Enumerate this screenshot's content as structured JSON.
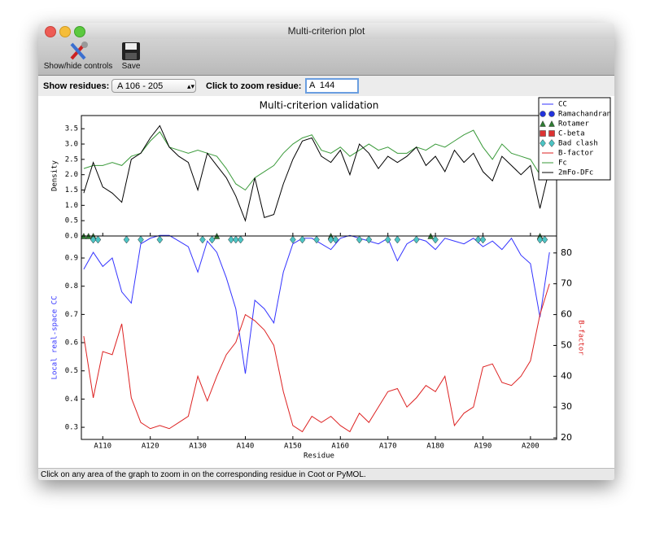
{
  "window": {
    "title": "Multi-criterion plot"
  },
  "toolbar": {
    "buttons": [
      "Show/hide controls",
      "Save"
    ]
  },
  "controls": {
    "residues_label": "Show residues:",
    "residues_value": "A  106 - 205",
    "zoom_label": "Click to zoom residue:",
    "zoom_value": "A  144"
  },
  "status_bar": "Click on any area of the graph to zoom in on the corresponding residue in Coot or PyMOL.",
  "chart_data": {
    "type": "line",
    "title": "Multi-criterion validation",
    "xlabel": "Residue",
    "x": [
      106,
      108,
      110,
      112,
      114,
      116,
      118,
      120,
      122,
      124,
      126,
      128,
      130,
      132,
      134,
      136,
      138,
      140,
      142,
      144,
      146,
      148,
      150,
      152,
      154,
      156,
      158,
      160,
      162,
      164,
      166,
      168,
      170,
      172,
      174,
      176,
      178,
      180,
      182,
      184,
      186,
      188,
      190,
      192,
      194,
      196,
      198,
      200,
      202,
      204
    ],
    "xlim": [
      105.5,
      205.5
    ],
    "xticks": [
      {
        "value": 110,
        "label": "A110"
      },
      {
        "value": 120,
        "label": "A120"
      },
      {
        "value": 130,
        "label": "A130"
      },
      {
        "value": 140,
        "label": "A140"
      },
      {
        "value": 150,
        "label": "A150"
      },
      {
        "value": 160,
        "label": "A160"
      },
      {
        "value": 170,
        "label": "A170"
      },
      {
        "value": 180,
        "label": "A180"
      },
      {
        "value": 190,
        "label": "A190"
      },
      {
        "value": 200,
        "label": "A200"
      }
    ],
    "legend": "upper right",
    "panels": [
      {
        "ylabel": "Density",
        "ylabel_color": "#000000",
        "ylim": [
          0,
          3.93
        ],
        "yticks": [
          {
            "value": 0,
            "label": "0.0"
          },
          0.5,
          {
            "value": 1,
            "label": "1.0"
          },
          1.5,
          {
            "value": 2,
            "label": "2.0"
          },
          2.5,
          {
            "value": 3,
            "label": "3.0"
          },
          3.5
        ]
      },
      {
        "ylabel": "Local real-space CC",
        "ylabel_color": "#3333ff",
        "ylim": [
          0.257,
          0.978
        ],
        "yticks": [
          0.3,
          0.4,
          0.5,
          0.6,
          0.7,
          0.8,
          0.9
        ],
        "y2label": "B-factor",
        "y2label_color": "#dd2222",
        "y2lim": [
          19.5,
          85.5
        ],
        "y2ticks": [
          20,
          30,
          40,
          50,
          60,
          70,
          80
        ]
      }
    ],
    "series": [
      {
        "name": "CC",
        "kind": "line",
        "panel": 1,
        "color": "#3333ff",
        "values": [
          0.86,
          0.92,
          0.87,
          0.9,
          0.78,
          0.74,
          0.95,
          0.97,
          0.98,
          0.98,
          0.96,
          0.94,
          0.85,
          0.96,
          0.92,
          0.83,
          0.72,
          0.49,
          0.75,
          0.72,
          0.67,
          0.85,
          0.95,
          0.97,
          0.97,
          0.95,
          0.93,
          0.97,
          0.98,
          0.97,
          0.96,
          0.95,
          0.97,
          0.89,
          0.95,
          0.97,
          0.96,
          0.93,
          0.97,
          0.96,
          0.95,
          0.97,
          0.94,
          0.96,
          0.93,
          0.97,
          0.91,
          0.88,
          0.69,
          0.92
        ]
      },
      {
        "name": "Ramachandran",
        "kind": "scatter",
        "marker": "circle",
        "panel": 0,
        "color": "#2233dd",
        "x": [],
        "values": []
      },
      {
        "name": "Rotamer",
        "kind": "scatter",
        "marker": "triangle",
        "panel": 0,
        "color": "#2e7d32",
        "x": [
          106,
          107,
          108,
          134,
          158,
          179,
          202
        ],
        "values": [
          0,
          0,
          0,
          0,
          0,
          0,
          0
        ]
      },
      {
        "name": "C-beta",
        "kind": "scatter",
        "marker": "square",
        "panel": 0,
        "color": "#dd3333",
        "x": [],
        "values": []
      },
      {
        "name": "Bad clash",
        "kind": "scatter",
        "marker": "diamond",
        "panel": 1,
        "color": "#4cc4c4",
        "x": [
          108,
          109,
          115,
          118,
          122,
          131,
          133,
          137,
          138,
          139,
          150,
          152,
          155,
          158,
          159,
          164,
          166,
          170,
          172,
          176,
          180,
          189,
          190,
          202,
          203
        ],
        "values": [
          0.965,
          0.965,
          0.965,
          0.965,
          0.965,
          0.965,
          0.965,
          0.965,
          0.965,
          0.965,
          0.965,
          0.965,
          0.965,
          0.965,
          0.965,
          0.965,
          0.965,
          0.965,
          0.965,
          0.965,
          0.965,
          0.965,
          0.965,
          0.965,
          0.965
        ]
      },
      {
        "name": "B-factor",
        "kind": "line",
        "panel": 1,
        "axis": "y2",
        "color": "#dd2222",
        "values": [
          53,
          33,
          48,
          47,
          57,
          33,
          25,
          23,
          24,
          23,
          25,
          27,
          40,
          32,
          40,
          47,
          51,
          60,
          58,
          55,
          50,
          35,
          24,
          22,
          27,
          25,
          27,
          24,
          22,
          28,
          25,
          30,
          35,
          36,
          30,
          33,
          37,
          35,
          40,
          24,
          28,
          30,
          43,
          44,
          38,
          37,
          40,
          45,
          60,
          70
        ]
      },
      {
        "name": "Fc",
        "kind": "line",
        "panel": 0,
        "color": "#3a9a3a",
        "values": [
          2.2,
          2.3,
          2.3,
          2.4,
          2.3,
          2.6,
          2.7,
          3.1,
          3.4,
          2.9,
          2.8,
          2.7,
          2.8,
          2.7,
          2.6,
          2.2,
          1.7,
          1.5,
          1.9,
          2.1,
          2.3,
          2.7,
          3.0,
          3.2,
          3.3,
          2.8,
          2.7,
          2.9,
          2.6,
          2.8,
          3.0,
          2.8,
          2.9,
          2.7,
          2.7,
          2.9,
          2.8,
          3.0,
          2.9,
          3.1,
          3.3,
          3.45,
          2.9,
          2.5,
          3.0,
          2.7,
          2.6,
          2.5,
          2.0,
          2.6
        ]
      },
      {
        "name": "2mFo-DFc",
        "kind": "line",
        "panel": 0,
        "color": "#000000",
        "values": [
          1.4,
          2.4,
          1.6,
          1.4,
          1.1,
          2.5,
          2.7,
          3.2,
          3.6,
          2.9,
          2.6,
          2.4,
          1.5,
          2.7,
          2.3,
          1.9,
          1.3,
          0.5,
          1.9,
          0.6,
          0.7,
          1.7,
          2.5,
          3.1,
          3.2,
          2.6,
          2.4,
          2.8,
          2.0,
          3.0,
          2.7,
          2.2,
          2.6,
          2.4,
          2.6,
          2.9,
          2.3,
          2.6,
          2.1,
          2.8,
          2.4,
          2.7,
          2.1,
          1.8,
          2.6,
          2.3,
          2.0,
          2.3,
          0.9,
          2.2
        ]
      }
    ]
  }
}
